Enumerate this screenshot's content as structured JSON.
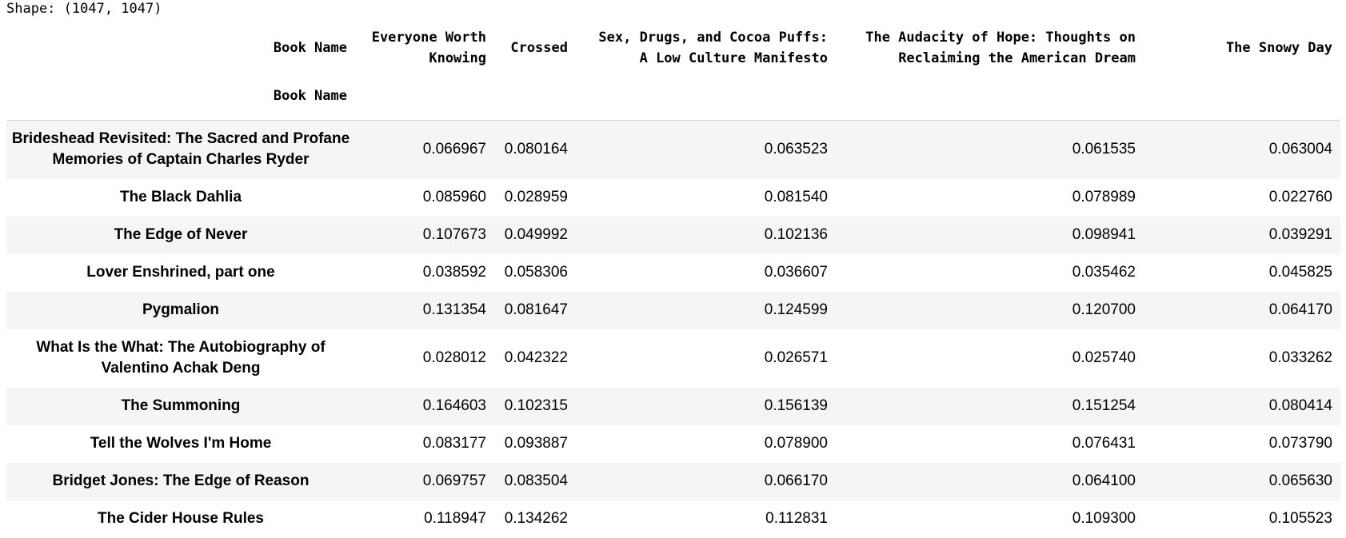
{
  "output": {
    "shape_text": "Shape: (1047, 1047)"
  },
  "table": {
    "index_header": "Book Name",
    "index_name": "Book Name",
    "columns": [
      "Everyone Worth Knowing",
      "Crossed",
      "Sex, Drugs, and Cocoa Puffs: A Low Culture Manifesto",
      "The Audacity of Hope: Thoughts on Reclaiming the American Dream",
      "The Snowy Day"
    ],
    "rows": [
      {
        "name": "Brideshead Revisited: The Sacred and Profane Memories of Captain Charles Ryder",
        "values": [
          "0.066967",
          "0.080164",
          "0.063523",
          "0.061535",
          "0.063004"
        ]
      },
      {
        "name": "The Black Dahlia",
        "values": [
          "0.085960",
          "0.028959",
          "0.081540",
          "0.078989",
          "0.022760"
        ]
      },
      {
        "name": "The Edge of Never",
        "values": [
          "0.107673",
          "0.049992",
          "0.102136",
          "0.098941",
          "0.039291"
        ]
      },
      {
        "name": "Lover Enshrined, part one",
        "values": [
          "0.038592",
          "0.058306",
          "0.036607",
          "0.035462",
          "0.045825"
        ]
      },
      {
        "name": "Pygmalion",
        "values": [
          "0.131354",
          "0.081647",
          "0.124599",
          "0.120700",
          "0.064170"
        ]
      },
      {
        "name": "What Is the What: The Autobiography of Valentino Achak Deng",
        "values": [
          "0.028012",
          "0.042322",
          "0.026571",
          "0.025740",
          "0.033262"
        ]
      },
      {
        "name": "The Summoning",
        "values": [
          "0.164603",
          "0.102315",
          "0.156139",
          "0.151254",
          "0.080414"
        ]
      },
      {
        "name": "Tell the Wolves I'm Home",
        "values": [
          "0.083177",
          "0.093887",
          "0.078900",
          "0.076431",
          "0.073790"
        ]
      },
      {
        "name": "Bridget Jones: The Edge of Reason",
        "values": [
          "0.069757",
          "0.083504",
          "0.066170",
          "0.064100",
          "0.065630"
        ]
      },
      {
        "name": "The Cider House Rules",
        "values": [
          "0.118947",
          "0.134262",
          "0.112831",
          "0.109300",
          "0.105523"
        ]
      }
    ]
  }
}
